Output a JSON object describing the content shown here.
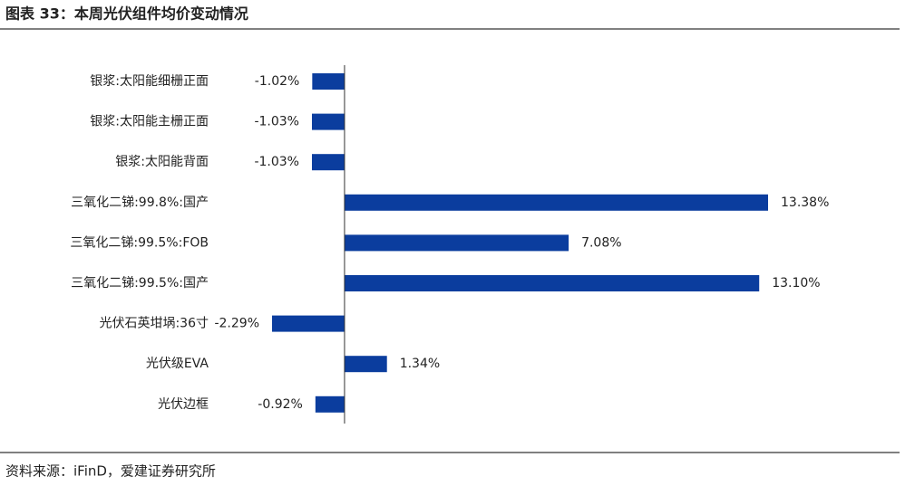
{
  "header": {
    "title": "图表 33：本周光伏组件均价变动情况"
  },
  "chart_data": {
    "type": "hbar",
    "categories": [
      "银浆:太阳能细栅正面",
      "银浆:太阳能主栅正面",
      "银浆:太阳能背面",
      "三氧化二锑:99.8%:国产",
      "三氧化二锑:99.5%:FOB",
      "三氧化二锑:99.5%:国产",
      "光伏石英坩埚:36寸",
      "光伏级EVA",
      "光伏边框"
    ],
    "values": [
      -1.02,
      -1.03,
      -1.03,
      13.38,
      7.08,
      13.1,
      -2.29,
      1.34,
      -0.92
    ],
    "value_labels": [
      "-1.02%",
      "-1.03%",
      "-1.03%",
      "13.38%",
      "7.08%",
      "13.10%",
      "-2.29%",
      "1.34%",
      "-0.92%"
    ],
    "color": "#0b3d9e"
  },
  "footer": {
    "source": "资料来源：iFinD，爱建证券研究所"
  }
}
